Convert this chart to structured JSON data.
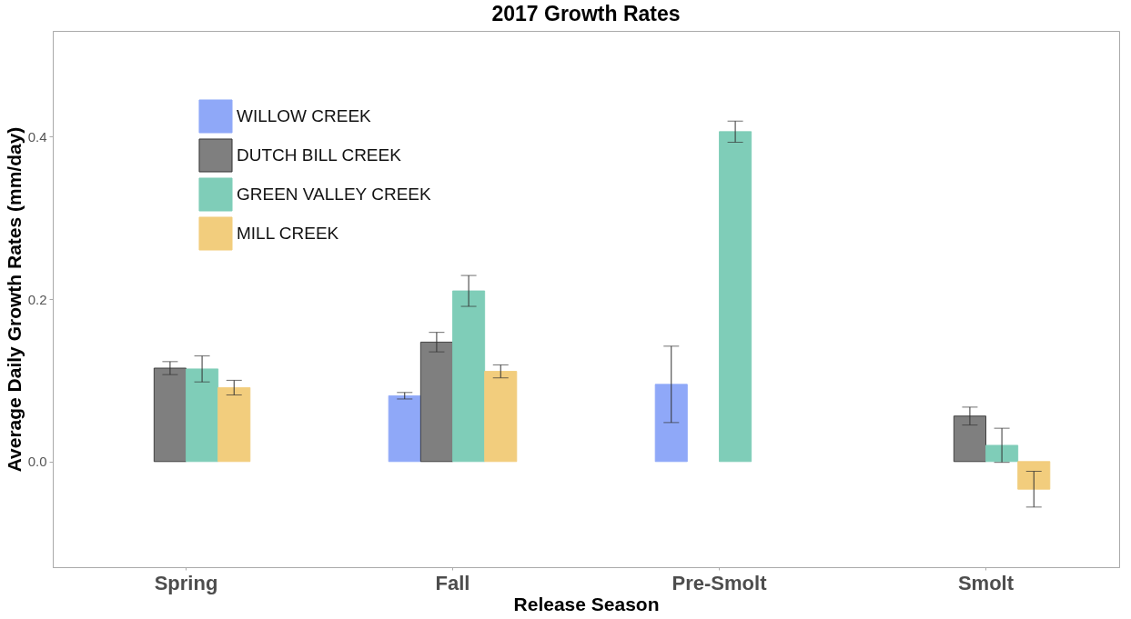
{
  "chart_data": {
    "type": "bar",
    "title": "2017 Growth Rates",
    "xlabel": "Release Season",
    "ylabel": "Average Daily Growth Rates (mm/day)",
    "categories": [
      "Spring",
      "Fall",
      "Pre-Smolt",
      "Smolt"
    ],
    "series": [
      {
        "name": "WILLOW CREEK",
        "color": "#8fa8f8",
        "values": [
          null,
          0.081,
          0.095,
          null
        ],
        "errors": [
          null,
          0.004,
          0.047,
          null
        ]
      },
      {
        "name": "DUTCH BILL CREEK",
        "color": "#7f7f7f",
        "values": [
          0.115,
          0.147,
          null,
          0.056
        ],
        "errors": [
          0.008,
          0.012,
          null,
          0.011
        ]
      },
      {
        "name": "GREEN VALLEY CREEK",
        "color": "#7fcdb8",
        "values": [
          0.114,
          0.21,
          0.406,
          0.02
        ],
        "errors": [
          0.016,
          0.019,
          0.013,
          0.021
        ]
      },
      {
        "name": "MILL CREEK",
        "color": "#f2cd7d",
        "values": [
          0.091,
          0.111,
          null,
          -0.034
        ],
        "errors": [
          0.009,
          0.008,
          null,
          0.022
        ]
      }
    ],
    "ylim": [
      -0.13,
      0.53
    ],
    "yticks": [
      {
        "value": 0,
        "label": "0.0"
      },
      0.2,
      0.4
    ],
    "grid": false,
    "legend": "top left"
  }
}
